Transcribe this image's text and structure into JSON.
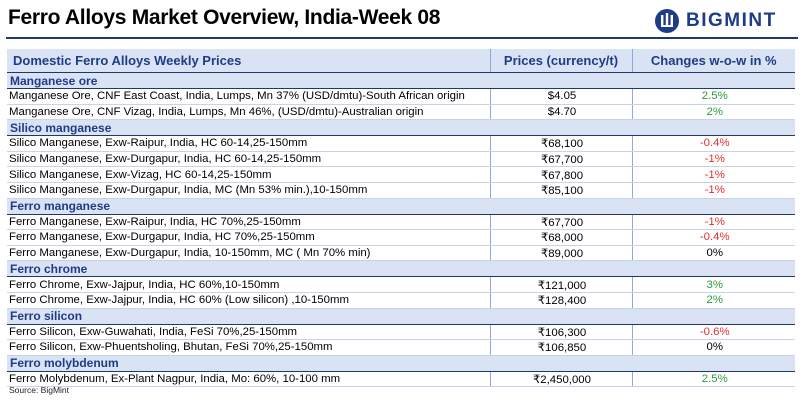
{
  "title": "Ferro Alloys Market Overview, India-Week 08",
  "logo": {
    "text": "BIGMINT",
    "icon": "bigmint-logo-icon",
    "color": "#1f3c88"
  },
  "colors": {
    "header_bg": "#dae3f3",
    "header_text": "#1f3c88",
    "positive": "#2e9b3f",
    "negative": "#e0312f"
  },
  "table": {
    "headers": [
      "Domestic Ferro Alloys Weekly Prices",
      "Prices (currency/t)",
      "Changes w-o-w in %"
    ],
    "sections": [
      {
        "name": "Manganese ore",
        "rows": [
          {
            "product": "Manganese Ore, CNF East Coast, India, Lumps, Mn 37% (USD/dmtu)-South African origin",
            "price": "$4.05",
            "change": "2.5%",
            "trend": "pos"
          },
          {
            "product": "Manganese Ore, CNF Vizag, India, Lumps, Mn 46%, (USD/dmtu)-Australian origin",
            "price": "$4.70",
            "change": "2%",
            "trend": "pos"
          }
        ]
      },
      {
        "name": "Silico manganese",
        "rows": [
          {
            "product": "Silico Manganese, Exw-Raipur, India, HC 60-14,25-150mm",
            "price": "₹68,100",
            "change": "-0.4%",
            "trend": "neg"
          },
          {
            "product": "Silico Manganese, Exw-Durgapur, India, HC 60-14,25-150mm",
            "price": "₹67,700",
            "change": "-1%",
            "trend": "neg"
          },
          {
            "product": "Silico Manganese, Exw-Vizag, HC 60-14,25-150mm",
            "price": "₹67,800",
            "change": "-1%",
            "trend": "neg"
          },
          {
            "product": "Silico Manganese, Exw-Durgapur, India, MC (Mn 53% min.),10-150mm",
            "price": "₹85,100",
            "change": "-1%",
            "trend": "neg"
          }
        ]
      },
      {
        "name": "Ferro manganese",
        "rows": [
          {
            "product": "Ferro Manganese, Exw-Raipur, India, HC 70%,25-150mm",
            "price": "₹67,700",
            "change": "-1%",
            "trend": "neg"
          },
          {
            "product": "Ferro Manganese, Exw-Durgapur, India, HC 70%,25-150mm",
            "price": "₹68,000",
            "change": "-0.4%",
            "trend": "neg"
          },
          {
            "product": "Ferro Manganese, Exw-Durgapur, India, 10-150mm, MC ( Mn 70% min)",
            "price": "₹89,000",
            "change": "0%",
            "trend": "zero"
          }
        ]
      },
      {
        "name": "Ferro chrome",
        "rows": [
          {
            "product": "Ferro Chrome, Exw-Jajpur, India, HC 60%,10-150mm",
            "price": "₹121,000",
            "change": "3%",
            "trend": "pos"
          },
          {
            "product": "Ferro Chrome, Exw-Jajpur, India, HC 60% (Low silicon) ,10-150mm",
            "price": "₹128,400",
            "change": "2%",
            "trend": "pos"
          }
        ]
      },
      {
        "name": "Ferro silicon",
        "rows": [
          {
            "product": "Ferro Silicon, Exw-Guwahati, India, FeSi 70%,25-150mm",
            "price": "₹106,300",
            "change": "-0.6%",
            "trend": "neg"
          },
          {
            "product": "Ferro Silicon, Exw-Phuentsholing, Bhutan, FeSi 70%,25-150mm",
            "price": "₹106,850",
            "change": "0%",
            "trend": "zero"
          }
        ]
      },
      {
        "name": "Ferro molybdenum",
        "rows": [
          {
            "product": "Ferro Molybdenum, Ex-Plant Nagpur, India, Mo: 60%, 10-100 mm",
            "price": "₹2,450,000",
            "change": "2.5%",
            "trend": "pos"
          }
        ]
      }
    ]
  },
  "source": "Source: BigMint"
}
